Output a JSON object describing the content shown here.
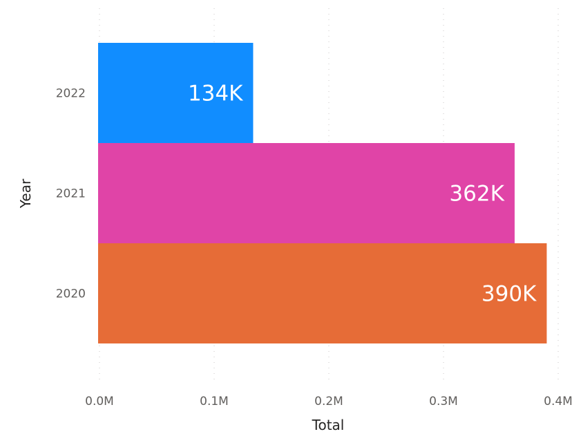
{
  "chart_data": {
    "type": "bar",
    "orientation": "horizontal",
    "categories": [
      "2022",
      "2021",
      "2020"
    ],
    "values": [
      134000,
      362000,
      390000
    ],
    "data_labels": [
      "134K",
      "362K",
      "390K"
    ],
    "colors": [
      "#118dff",
      "#e044a7",
      "#e66c37"
    ],
    "xlabel": "Total",
    "ylabel": "Year",
    "xlim": [
      0,
      400000
    ],
    "x_ticks": [
      {
        "value": 0,
        "label": "0.0M"
      },
      {
        "value": 100000,
        "label": "0.1M"
      },
      {
        "value": 200000,
        "label": "0.2M"
      },
      {
        "value": 300000,
        "label": "0.3M"
      },
      {
        "value": 400000,
        "label": "0.4M"
      }
    ],
    "grid": true,
    "legend": "none"
  }
}
